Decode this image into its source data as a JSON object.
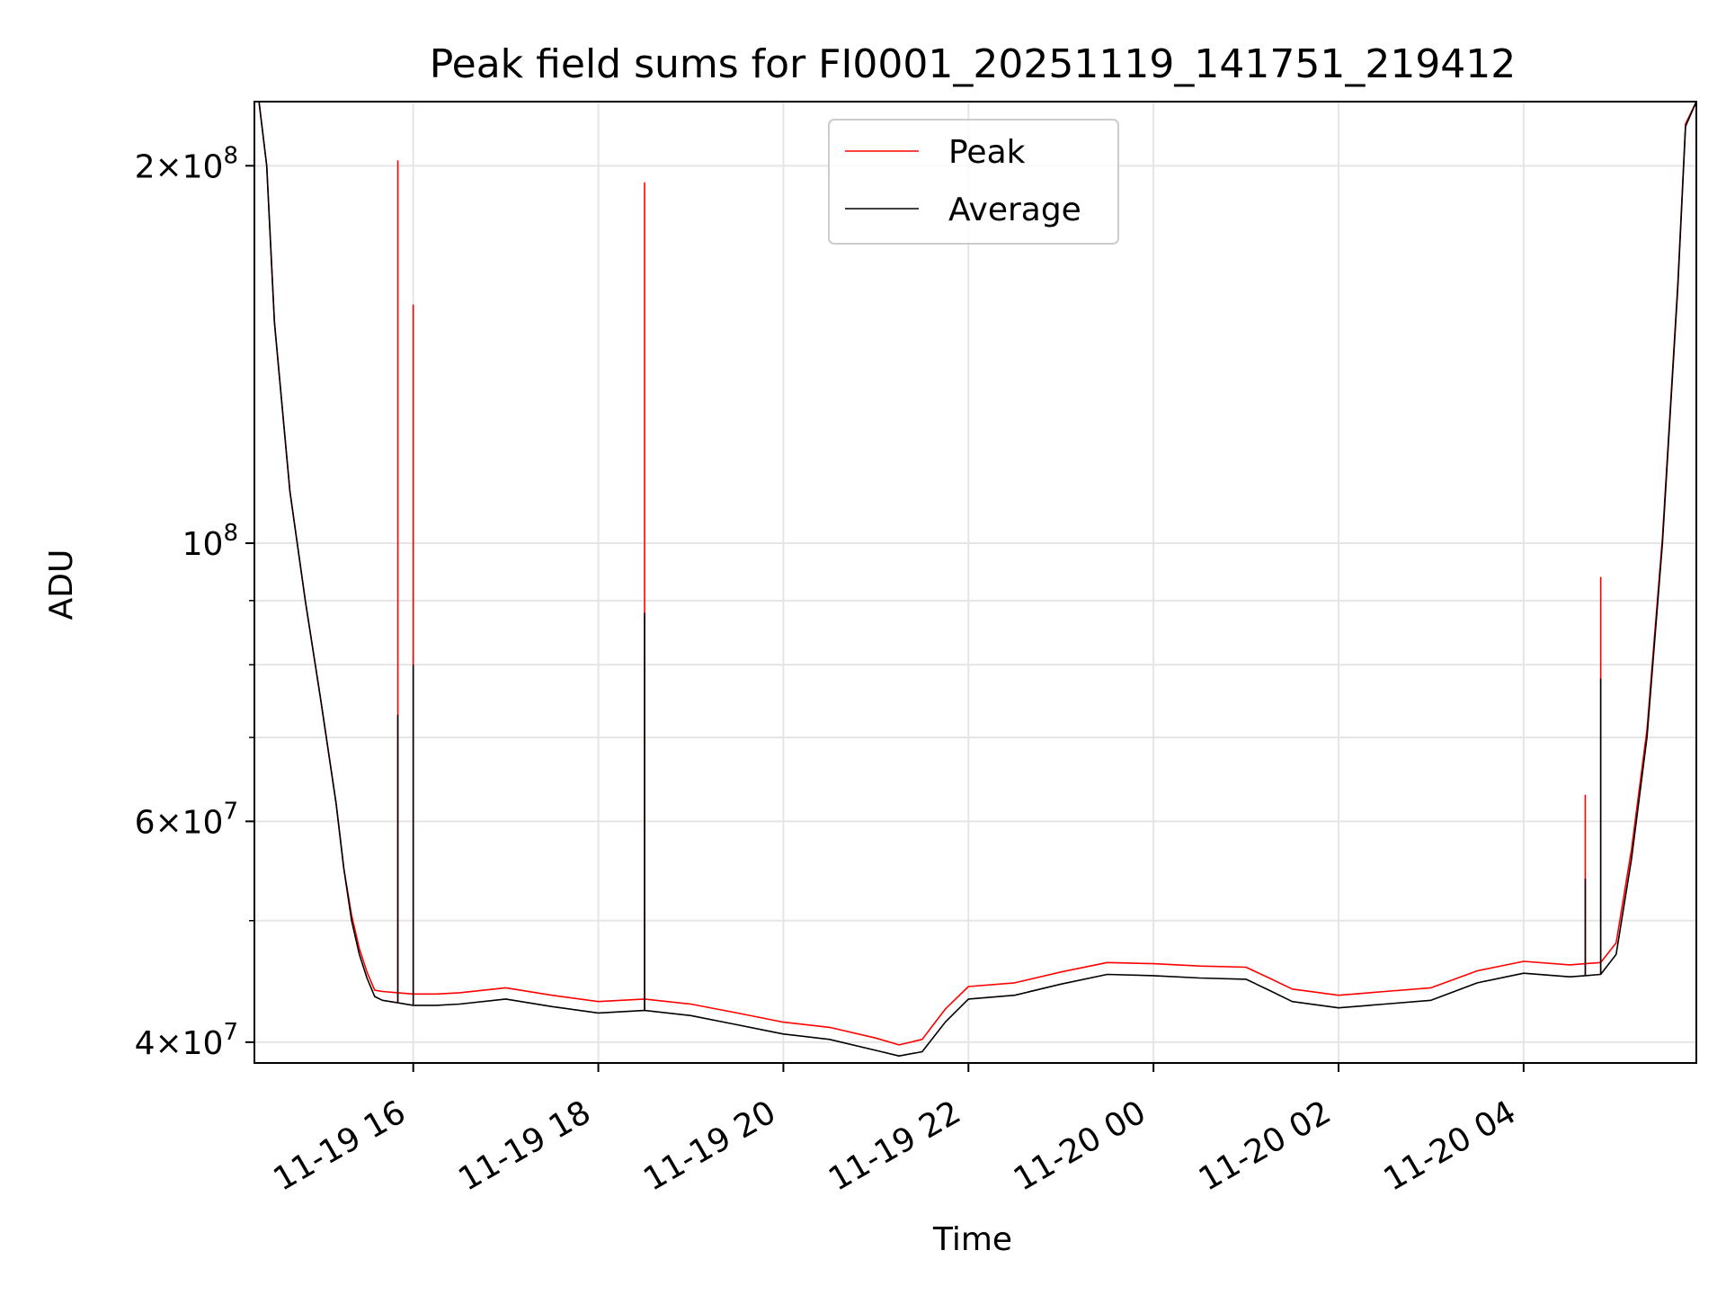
{
  "chart_data": {
    "type": "line",
    "title": "Peak field sums for FI0001_20251119_141751_219412",
    "xlabel": "Time",
    "ylabel": "ADU",
    "yscale": "log",
    "xlim": [
      "2025-11-19 14:17",
      "2025-11-20 05:52"
    ],
    "ylim": [
      38500000,
      225000000
    ],
    "grid": true,
    "legend": {
      "location": "upper center",
      "entries": [
        "Peak",
        "Average"
      ]
    },
    "x_ticks": [
      "2025-11-19 16:00",
      "2025-11-19 18:00",
      "2025-11-19 20:00",
      "2025-11-19 22:00",
      "2025-11-20 00:00",
      "2025-11-20 02:00",
      "2025-11-20 04:00"
    ],
    "x_tick_labels": [
      "11-19 16",
      "11-19 18",
      "11-19 20",
      "11-19 22",
      "11-20 00",
      "11-20 02",
      "11-20 04"
    ],
    "y_ticks": [
      {
        "value": 40000000,
        "mantissa": "4",
        "exponent": "7"
      },
      {
        "value": 60000000,
        "mantissa": "6",
        "exponent": "7"
      },
      {
        "value": 100000000,
        "mantissa": "",
        "exponent": "8"
      },
      {
        "value": 200000000,
        "mantissa": "2",
        "exponent": "8"
      }
    ],
    "y_minor_ticks": [
      50000000,
      70000000,
      80000000,
      90000000
    ],
    "x": [
      "2025-11-19 14:17",
      "2025-11-19 14:20",
      "2025-11-19 14:25",
      "2025-11-19 14:30",
      "2025-11-19 14:40",
      "2025-11-19 14:50",
      "2025-11-19 15:00",
      "2025-11-19 15:10",
      "2025-11-19 15:15",
      "2025-11-19 15:20",
      "2025-11-19 15:25",
      "2025-11-19 15:30",
      "2025-11-19 15:35",
      "2025-11-19 15:40",
      "2025-11-19 15:50",
      "2025-11-19 16:00",
      "2025-11-19 16:15",
      "2025-11-19 16:30",
      "2025-11-19 17:00",
      "2025-11-19 17:30",
      "2025-11-19 18:00",
      "2025-11-19 18:30",
      "2025-11-19 19:00",
      "2025-11-19 19:30",
      "2025-11-19 20:00",
      "2025-11-19 20:30",
      "2025-11-19 21:00",
      "2025-11-19 21:15",
      "2025-11-19 21:30",
      "2025-11-19 21:45",
      "2025-11-19 22:00",
      "2025-11-19 22:30",
      "2025-11-19 23:00",
      "2025-11-19 23:30",
      "2025-11-20 00:00",
      "2025-11-20 00:30",
      "2025-11-20 01:00",
      "2025-11-20 01:15",
      "2025-11-20 01:30",
      "2025-11-20 02:00",
      "2025-11-20 02:30",
      "2025-11-20 03:00",
      "2025-11-20 03:30",
      "2025-11-20 04:00",
      "2025-11-20 04:30",
      "2025-11-20 04:40",
      "2025-11-20 04:50",
      "2025-11-20 05:00",
      "2025-11-20 05:10",
      "2025-11-20 05:20",
      "2025-11-20 05:30",
      "2025-11-20 05:40",
      "2025-11-20 05:45",
      "2025-11-20 05:52"
    ],
    "series": [
      {
        "name": "Average",
        "color": "#000000",
        "values": [
          225000000,
          225000000,
          200000000,
          150000000,
          110000000,
          90000000,
          75000000,
          62000000,
          55000000,
          50000000,
          47000000,
          45000000,
          43500000,
          43200000,
          43000000,
          42800000,
          42800000,
          42900000,
          43300000,
          42700000,
          42200000,
          42400000,
          42000000,
          41300000,
          40600000,
          40200000,
          39400000,
          39000000,
          39300000,
          41500000,
          43300000,
          43600000,
          44500000,
          45300000,
          45200000,
          45000000,
          44900000,
          44000000,
          43100000,
          42600000,
          42900000,
          43200000,
          44600000,
          45400000,
          45100000,
          45200000,
          45300000,
          47000000,
          56000000,
          70000000,
          100000000,
          160000000,
          215000000,
          225000000
        ]
      },
      {
        "name": "Peak",
        "color": "#ff0000",
        "values": [
          225000000,
          225000000,
          200000000,
          150000000,
          110000000,
          90000000,
          75000000,
          62000000,
          55000000,
          50500000,
          47500000,
          45500000,
          44000000,
          43900000,
          43800000,
          43700000,
          43700000,
          43800000,
          44200000,
          43600000,
          43100000,
          43300000,
          42900000,
          42200000,
          41500000,
          41100000,
          40300000,
          39800000,
          40200000,
          42500000,
          44300000,
          44600000,
          45500000,
          46300000,
          46200000,
          46000000,
          45900000,
          45000000,
          44100000,
          43600000,
          43900000,
          44200000,
          45600000,
          46400000,
          46100000,
          46200000,
          46300000,
          48000000,
          57000000,
          71000000,
          101000000,
          161000000,
          216000000,
          225000000
        ]
      }
    ],
    "spikes": [
      {
        "x": "2025-11-19 15:50",
        "peak": 202000000,
        "average": 73000000
      },
      {
        "x": "2025-11-19 16:00",
        "peak": 155000000,
        "average": 80000000
      },
      {
        "x": "2025-11-19 18:30",
        "peak": 194000000,
        "average": 88000000
      },
      {
        "x": "2025-11-20 04:40",
        "peak": 63000000,
        "average": 54000000
      },
      {
        "x": "2025-11-20 04:50",
        "peak": 94000000,
        "average": 78000000
      }
    ]
  },
  "colors": {
    "peak": "#ff0000",
    "average": "#000000",
    "grid": "#e5e5e5"
  }
}
